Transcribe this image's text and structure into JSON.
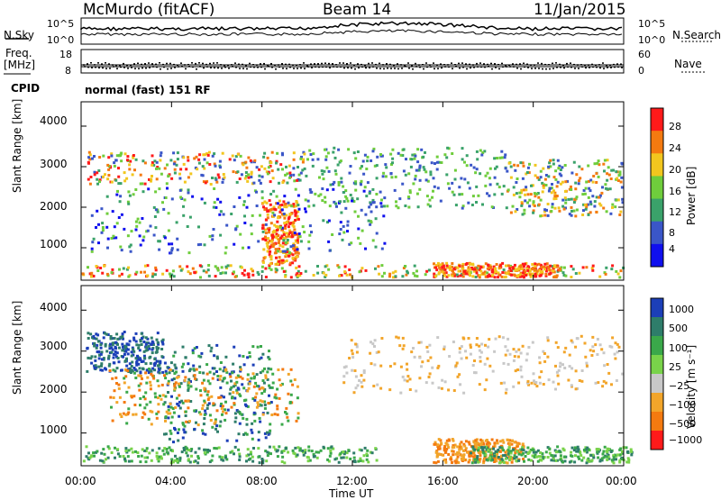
{
  "header": {
    "station": "McMurdo (fitACF)",
    "beam": "Beam 14",
    "date": "11/Jan/2015"
  },
  "top_panel": {
    "left_label": "N.Sky",
    "right_label": "N.Search",
    "left_ticks": [
      "10^5",
      "10^0"
    ],
    "right_ticks": [
      "10^5",
      "10^0"
    ]
  },
  "freq_panel": {
    "left_label_1": "Freq.",
    "left_label_2": "[MHz]",
    "right_label": "Nave",
    "left_ticks": [
      "18",
      "8"
    ],
    "right_ticks": [
      "60",
      "0"
    ]
  },
  "cpid": {
    "label": "CPID",
    "value": "normal (fast) 151 RF"
  },
  "chart_data": [
    {
      "type": "heatmap",
      "name": "power",
      "xlabel": "",
      "ylabel": "Slant Range [km]",
      "y_ticks": [
        "4000",
        "3000",
        "2000",
        "1000"
      ],
      "ylim": [
        200,
        4600
      ],
      "colorbar": {
        "label": "Power [dB]",
        "ticks": [
          "28",
          "24",
          "20",
          "16",
          "12",
          "8",
          "4"
        ],
        "colors": [
          "#ff1a1a",
          "#f47a10",
          "#f2c61e",
          "#6fcd3c",
          "#3aa26a",
          "#3a56c8",
          "#1010ee"
        ]
      }
    },
    {
      "type": "heatmap",
      "name": "velocity",
      "xlabel": "Time UT",
      "ylabel": "Slant Range [km]",
      "y_ticks": [
        "4000",
        "3000",
        "2000",
        "1000"
      ],
      "x_ticks": [
        "00:00",
        "04:00",
        "08:00",
        "12:00",
        "16:00",
        "20:00",
        "00:00"
      ],
      "ylim": [
        200,
        4600
      ],
      "colorbar": {
        "label": "Velocity [m s⁻¹]",
        "ticks": [
          "1000",
          "500",
          "100",
          "25",
          "−25",
          "−100",
          "−500",
          "−1000"
        ],
        "colors": [
          "#1c3fb8",
          "#2e7d6a",
          "#3aa84a",
          "#79d34a",
          "#c8c8c8",
          "#f2a52a",
          "#f47a10",
          "#ff1a1a"
        ]
      }
    }
  ]
}
